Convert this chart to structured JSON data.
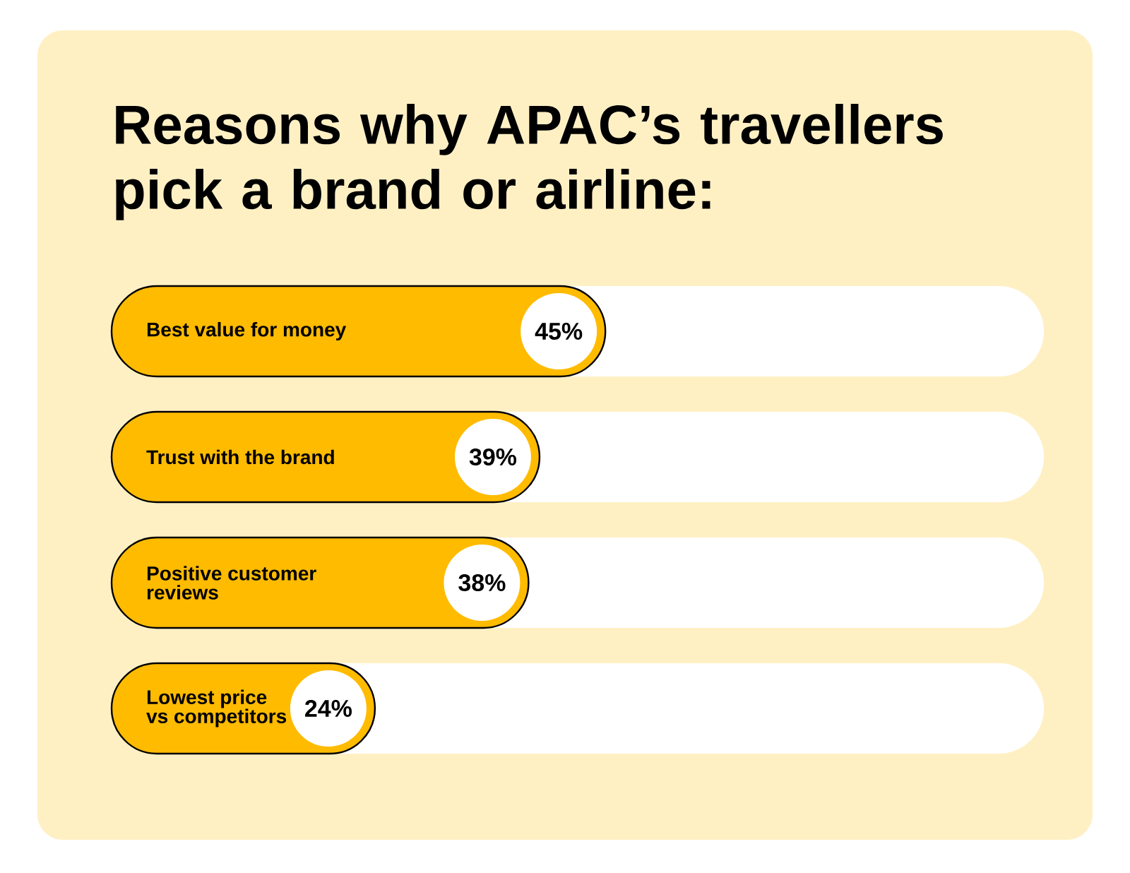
{
  "chart_data": {
    "type": "bar",
    "orientation": "horizontal",
    "title": "Reasons why APAC’s travellers pick a brand or airline:",
    "categories": [
      "Best value for money",
      "Trust with the brand",
      "Positive customer reviews",
      "Lowest price vs competitors"
    ],
    "values": [
      45,
      39,
      38,
      24
    ],
    "value_labels": [
      "45%",
      "39%",
      "38%",
      "24%"
    ],
    "color": "#ffbb00"
  }
}
